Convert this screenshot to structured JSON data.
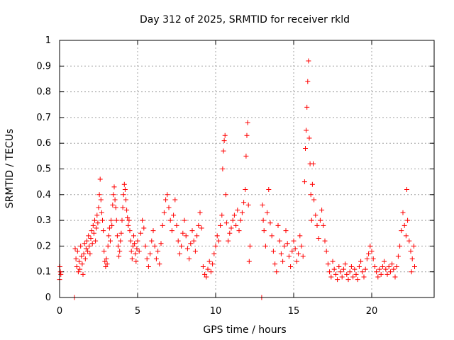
{
  "chart_data": {
    "type": "scatter",
    "title": "Day 312 of 2025, SRMTID for receiver rkld",
    "xlabel": "GPS time / hours",
    "ylabel": "SRMTID / TECUs",
    "xlim": [
      0,
      24
    ],
    "ylim": [
      0,
      1
    ],
    "grid": true,
    "marker": "+",
    "color": "#ff0000",
    "xticks": [
      0,
      5,
      10,
      15,
      20
    ],
    "xtick_labels": [
      "0",
      "5",
      "10",
      "15",
      "20"
    ],
    "yticks": [
      0,
      0.1,
      0.2,
      0.3,
      0.4,
      0.5,
      0.6,
      0.7,
      0.8,
      0.9,
      1
    ],
    "ytick_labels": [
      "0",
      "0.1",
      "0.2",
      "0.3",
      "0.4",
      "0.5",
      "0.6",
      "0.7",
      "0.8",
      "0.9",
      "1"
    ],
    "series": [
      {
        "name": "SRMTID",
        "points": [
          [
            0.0,
            0.07
          ],
          [
            0.02,
            0.12
          ],
          [
            0.05,
            0.1
          ],
          [
            0.08,
            0.09
          ],
          [
            0.95,
            0.0
          ],
          [
            1.0,
            0.19
          ],
          [
            1.05,
            0.15
          ],
          [
            1.1,
            0.12
          ],
          [
            1.15,
            0.18
          ],
          [
            1.2,
            0.1
          ],
          [
            1.25,
            0.14
          ],
          [
            1.3,
            0.11
          ],
          [
            1.35,
            0.2
          ],
          [
            1.4,
            0.16
          ],
          [
            1.45,
            0.13
          ],
          [
            1.5,
            0.09
          ],
          [
            1.55,
            0.17
          ],
          [
            1.6,
            0.21
          ],
          [
            1.65,
            0.15
          ],
          [
            1.7,
            0.19
          ],
          [
            1.75,
            0.22
          ],
          [
            1.8,
            0.18
          ],
          [
            1.85,
            0.24
          ],
          [
            1.9,
            0.2
          ],
          [
            1.95,
            0.17
          ],
          [
            2.0,
            0.23
          ],
          [
            2.05,
            0.26
          ],
          [
            2.1,
            0.21
          ],
          [
            2.15,
            0.28
          ],
          [
            2.2,
            0.25
          ],
          [
            2.25,
            0.3
          ],
          [
            2.3,
            0.22
          ],
          [
            2.35,
            0.27
          ],
          [
            2.4,
            0.32
          ],
          [
            2.45,
            0.29
          ],
          [
            2.5,
            0.35
          ],
          [
            2.55,
            0.4
          ],
          [
            2.6,
            0.46
          ],
          [
            2.65,
            0.38
          ],
          [
            2.7,
            0.33
          ],
          [
            2.75,
            0.3
          ],
          [
            2.8,
            0.26
          ],
          [
            2.85,
            0.18
          ],
          [
            2.9,
            0.14
          ],
          [
            2.95,
            0.12
          ],
          [
            3.0,
            0.15
          ],
          [
            3.05,
            0.13
          ],
          [
            3.1,
            0.2
          ],
          [
            3.15,
            0.24
          ],
          [
            3.2,
            0.27
          ],
          [
            3.25,
            0.22
          ],
          [
            3.3,
            0.3
          ],
          [
            3.35,
            0.28
          ],
          [
            3.4,
            0.36
          ],
          [
            3.45,
            0.4
          ],
          [
            3.5,
            0.43
          ],
          [
            3.55,
            0.38
          ],
          [
            3.6,
            0.35
          ],
          [
            3.65,
            0.3
          ],
          [
            3.7,
            0.24
          ],
          [
            3.75,
            0.2
          ],
          [
            3.8,
            0.16
          ],
          [
            3.85,
            0.18
          ],
          [
            3.9,
            0.22
          ],
          [
            3.95,
            0.25
          ],
          [
            4.0,
            0.3
          ],
          [
            4.05,
            0.35
          ],
          [
            4.1,
            0.4
          ],
          [
            4.15,
            0.44
          ],
          [
            4.2,
            0.42
          ],
          [
            4.25,
            0.38
          ],
          [
            4.3,
            0.34
          ],
          [
            4.35,
            0.31
          ],
          [
            4.4,
            0.28
          ],
          [
            4.45,
            0.3
          ],
          [
            4.5,
            0.26
          ],
          [
            4.55,
            0.22
          ],
          [
            4.6,
            0.18
          ],
          [
            4.65,
            0.15
          ],
          [
            4.7,
            0.2
          ],
          [
            4.75,
            0.24
          ],
          [
            4.8,
            0.21
          ],
          [
            4.85,
            0.17
          ],
          [
            4.9,
            0.14
          ],
          [
            4.95,
            0.19
          ],
          [
            5.0,
            0.22
          ],
          [
            5.1,
            0.18
          ],
          [
            5.2,
            0.25
          ],
          [
            5.3,
            0.3
          ],
          [
            5.4,
            0.27
          ],
          [
            5.5,
            0.2
          ],
          [
            5.6,
            0.15
          ],
          [
            5.7,
            0.12
          ],
          [
            5.8,
            0.17
          ],
          [
            5.9,
            0.22
          ],
          [
            6.0,
            0.26
          ],
          [
            6.1,
            0.2
          ],
          [
            6.2,
            0.15
          ],
          [
            6.3,
            0.18
          ],
          [
            6.4,
            0.13
          ],
          [
            6.5,
            0.21
          ],
          [
            6.6,
            0.28
          ],
          [
            6.7,
            0.33
          ],
          [
            6.8,
            0.38
          ],
          [
            6.9,
            0.4
          ],
          [
            7.0,
            0.35
          ],
          [
            7.1,
            0.3
          ],
          [
            7.2,
            0.26
          ],
          [
            7.3,
            0.32
          ],
          [
            7.4,
            0.38
          ],
          [
            7.5,
            0.28
          ],
          [
            7.6,
            0.22
          ],
          [
            7.7,
            0.17
          ],
          [
            7.8,
            0.2
          ],
          [
            7.9,
            0.25
          ],
          [
            8.0,
            0.3
          ],
          [
            8.1,
            0.24
          ],
          [
            8.2,
            0.19
          ],
          [
            8.3,
            0.15
          ],
          [
            8.4,
            0.21
          ],
          [
            8.5,
            0.26
          ],
          [
            8.6,
            0.22
          ],
          [
            8.7,
            0.18
          ],
          [
            8.8,
            0.24
          ],
          [
            8.9,
            0.28
          ],
          [
            9.0,
            0.33
          ],
          [
            9.1,
            0.27
          ],
          [
            9.2,
            0.12
          ],
          [
            9.3,
            0.09
          ],
          [
            9.4,
            0.08
          ],
          [
            9.5,
            0.11
          ],
          [
            9.6,
            0.14
          ],
          [
            9.7,
            0.1
          ],
          [
            9.8,
            0.13
          ],
          [
            9.9,
            0.17
          ],
          [
            10.0,
            0.2
          ],
          [
            10.1,
            0.24
          ],
          [
            10.2,
            0.22
          ],
          [
            10.3,
            0.28
          ],
          [
            10.4,
            0.32
          ],
          [
            10.45,
            0.5
          ],
          [
            10.5,
            0.57
          ],
          [
            10.55,
            0.61
          ],
          [
            10.6,
            0.63
          ],
          [
            10.65,
            0.4
          ],
          [
            10.7,
            0.29
          ],
          [
            10.8,
            0.22
          ],
          [
            10.9,
            0.25
          ],
          [
            11.0,
            0.27
          ],
          [
            11.1,
            0.3
          ],
          [
            11.2,
            0.32
          ],
          [
            11.3,
            0.28
          ],
          [
            11.4,
            0.34
          ],
          [
            11.5,
            0.26
          ],
          [
            11.6,
            0.3
          ],
          [
            11.7,
            0.33
          ],
          [
            11.8,
            0.37
          ],
          [
            11.9,
            0.42
          ],
          [
            11.95,
            0.55
          ],
          [
            12.0,
            0.63
          ],
          [
            12.05,
            0.68
          ],
          [
            12.1,
            0.36
          ],
          [
            12.15,
            0.14
          ],
          [
            12.2,
            0.2
          ],
          [
            12.95,
            0.0
          ],
          [
            13.0,
            0.36
          ],
          [
            13.05,
            0.3
          ],
          [
            13.1,
            0.26
          ],
          [
            13.2,
            0.2
          ],
          [
            13.3,
            0.33
          ],
          [
            13.4,
            0.42
          ],
          [
            13.5,
            0.29
          ],
          [
            13.6,
            0.24
          ],
          [
            13.7,
            0.18
          ],
          [
            13.8,
            0.13
          ],
          [
            13.9,
            0.1
          ],
          [
            14.0,
            0.28
          ],
          [
            14.1,
            0.22
          ],
          [
            14.2,
            0.17
          ],
          [
            14.3,
            0.14
          ],
          [
            14.4,
            0.2
          ],
          [
            14.5,
            0.26
          ],
          [
            14.6,
            0.21
          ],
          [
            14.7,
            0.16
          ],
          [
            14.8,
            0.12
          ],
          [
            14.9,
            0.18
          ],
          [
            15.0,
            0.22
          ],
          [
            15.1,
            0.19
          ],
          [
            15.2,
            0.14
          ],
          [
            15.3,
            0.17
          ],
          [
            15.4,
            0.24
          ],
          [
            15.5,
            0.2
          ],
          [
            15.6,
            0.16
          ],
          [
            15.7,
            0.45
          ],
          [
            15.75,
            0.58
          ],
          [
            15.8,
            0.65
          ],
          [
            15.85,
            0.74
          ],
          [
            15.9,
            0.84
          ],
          [
            15.95,
            0.92
          ],
          [
            16.0,
            0.62
          ],
          [
            16.05,
            0.52
          ],
          [
            16.1,
            0.4
          ],
          [
            16.15,
            0.3
          ],
          [
            16.2,
            0.44
          ],
          [
            16.25,
            0.52
          ],
          [
            16.3,
            0.38
          ],
          [
            16.4,
            0.32
          ],
          [
            16.5,
            0.28
          ],
          [
            16.6,
            0.23
          ],
          [
            16.7,
            0.3
          ],
          [
            16.8,
            0.34
          ],
          [
            16.9,
            0.28
          ],
          [
            17.0,
            0.22
          ],
          [
            17.1,
            0.18
          ],
          [
            17.2,
            0.13
          ],
          [
            17.3,
            0.1
          ],
          [
            17.4,
            0.08
          ],
          [
            17.5,
            0.14
          ],
          [
            17.6,
            0.11
          ],
          [
            17.7,
            0.09
          ],
          [
            17.8,
            0.07
          ],
          [
            17.9,
            0.12
          ],
          [
            18.0,
            0.1
          ],
          [
            18.1,
            0.08
          ],
          [
            18.2,
            0.11
          ],
          [
            18.3,
            0.13
          ],
          [
            18.4,
            0.09
          ],
          [
            18.5,
            0.07
          ],
          [
            18.6,
            0.1
          ],
          [
            18.7,
            0.12
          ],
          [
            18.8,
            0.08
          ],
          [
            18.9,
            0.11
          ],
          [
            19.0,
            0.09
          ],
          [
            19.1,
            0.07
          ],
          [
            19.2,
            0.12
          ],
          [
            19.3,
            0.14
          ],
          [
            19.4,
            0.1
          ],
          [
            19.5,
            0.08
          ],
          [
            19.6,
            0.11
          ],
          [
            19.7,
            0.15
          ],
          [
            19.8,
            0.17
          ],
          [
            19.9,
            0.2
          ],
          [
            20.0,
            0.18
          ],
          [
            20.1,
            0.15
          ],
          [
            20.2,
            0.12
          ],
          [
            20.3,
            0.1
          ],
          [
            20.4,
            0.08
          ],
          [
            20.5,
            0.11
          ],
          [
            20.6,
            0.09
          ],
          [
            20.7,
            0.12
          ],
          [
            20.8,
            0.14
          ],
          [
            20.9,
            0.11
          ],
          [
            21.0,
            0.09
          ],
          [
            21.1,
            0.12
          ],
          [
            21.2,
            0.1
          ],
          [
            21.3,
            0.13
          ],
          [
            21.4,
            0.11
          ],
          [
            21.5,
            0.08
          ],
          [
            21.6,
            0.12
          ],
          [
            21.7,
            0.16
          ],
          [
            21.8,
            0.2
          ],
          [
            21.9,
            0.26
          ],
          [
            22.0,
            0.33
          ],
          [
            22.1,
            0.28
          ],
          [
            22.2,
            0.24
          ],
          [
            22.25,
            0.42
          ],
          [
            22.3,
            0.3
          ],
          [
            22.4,
            0.22
          ],
          [
            22.5,
            0.18
          ],
          [
            22.55,
            0.1
          ],
          [
            22.6,
            0.15
          ],
          [
            22.7,
            0.2
          ],
          [
            22.75,
            0.12
          ]
        ]
      }
    ]
  }
}
